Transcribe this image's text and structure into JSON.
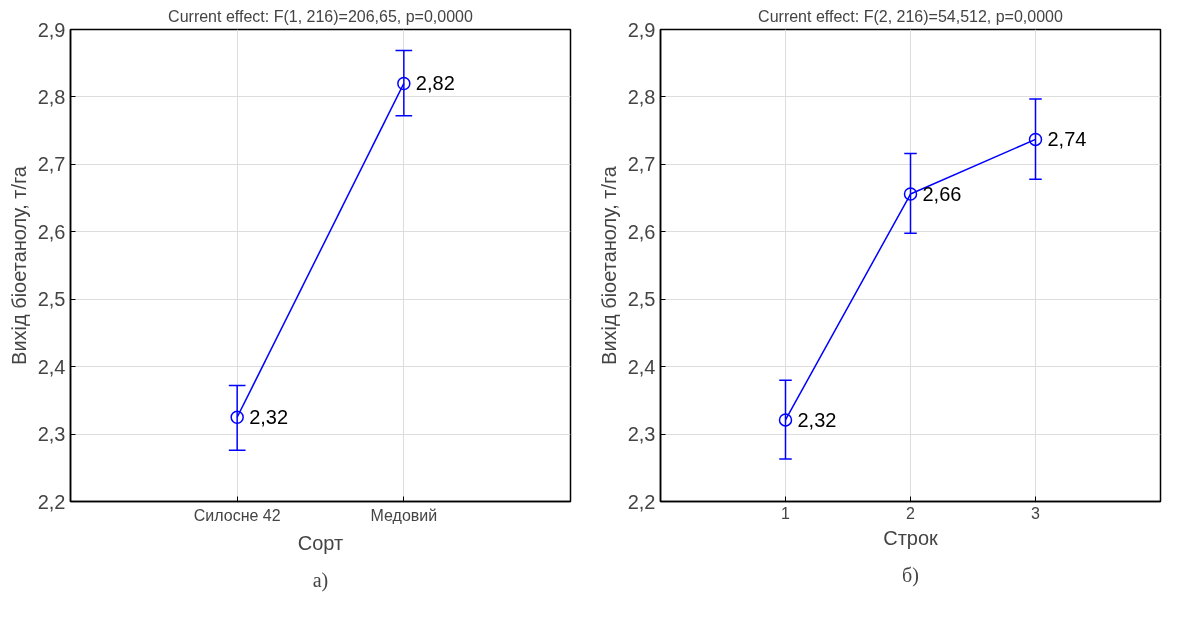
{
  "chart_data": [
    {
      "type": "line",
      "title": "Current effect: F(1, 216)=206,65, p=0,0000",
      "xlabel": "Сорт",
      "ylabel": "Вихід біоетанолу, т/га",
      "categories": [
        "Силосне 42",
        "Медовий"
      ],
      "series": [
        {
          "color": "#0000ff",
          "values": [
            2.325,
            2.82
          ],
          "errors": [
            [
              2.276,
              2.372
            ],
            [
              2.772,
              2.869
            ]
          ],
          "value_labels": [
            "2,32",
            "2,82"
          ]
        }
      ],
      "ylim": [
        2.2,
        2.9
      ],
      "yticks": [
        {
          "value": 2.2,
          "label": "2,2"
        },
        {
          "value": 2.3,
          "label": "2,3"
        },
        {
          "value": 2.4,
          "label": "2,4"
        },
        {
          "value": 2.5,
          "label": "2,5"
        },
        {
          "value": 2.6,
          "label": "2,6"
        },
        {
          "value": 2.7,
          "label": "2,7"
        },
        {
          "value": 2.8,
          "label": "2,8"
        },
        {
          "value": 2.9,
          "label": "2,9"
        }
      ],
      "grid": true,
      "marker": "circle",
      "line_style": "solid",
      "annotations": [
        "а)"
      ]
    },
    {
      "type": "line",
      "title": "Current effect: F(2, 216)=54,512, p=0,0000",
      "xlabel": "Строк",
      "ylabel": "Вихід біоетанолу, т/га",
      "categories": [
        "1",
        "2",
        "3"
      ],
      "series": [
        {
          "color": "#0000ff",
          "values": [
            2.321,
            2.656,
            2.737
          ],
          "errors": [
            [
              2.263,
              2.38
            ],
            [
              2.598,
              2.716
            ],
            [
              2.678,
              2.797
            ]
          ],
          "value_labels": [
            "2,32",
            "2,66",
            "2,74"
          ]
        }
      ],
      "ylim": [
        2.2,
        2.9
      ],
      "yticks": [
        {
          "value": 2.2,
          "label": "2,2"
        },
        {
          "value": 2.3,
          "label": "2,3"
        },
        {
          "value": 2.4,
          "label": "2,4"
        },
        {
          "value": 2.5,
          "label": "2,5"
        },
        {
          "value": 2.6,
          "label": "2,6"
        },
        {
          "value": 2.7,
          "label": "2,7"
        },
        {
          "value": 2.8,
          "label": "2,8"
        },
        {
          "value": 2.9,
          "label": "2,9"
        }
      ],
      "grid": true,
      "marker": "circle",
      "line_style": "solid",
      "annotations": [
        "б)"
      ]
    }
  ]
}
